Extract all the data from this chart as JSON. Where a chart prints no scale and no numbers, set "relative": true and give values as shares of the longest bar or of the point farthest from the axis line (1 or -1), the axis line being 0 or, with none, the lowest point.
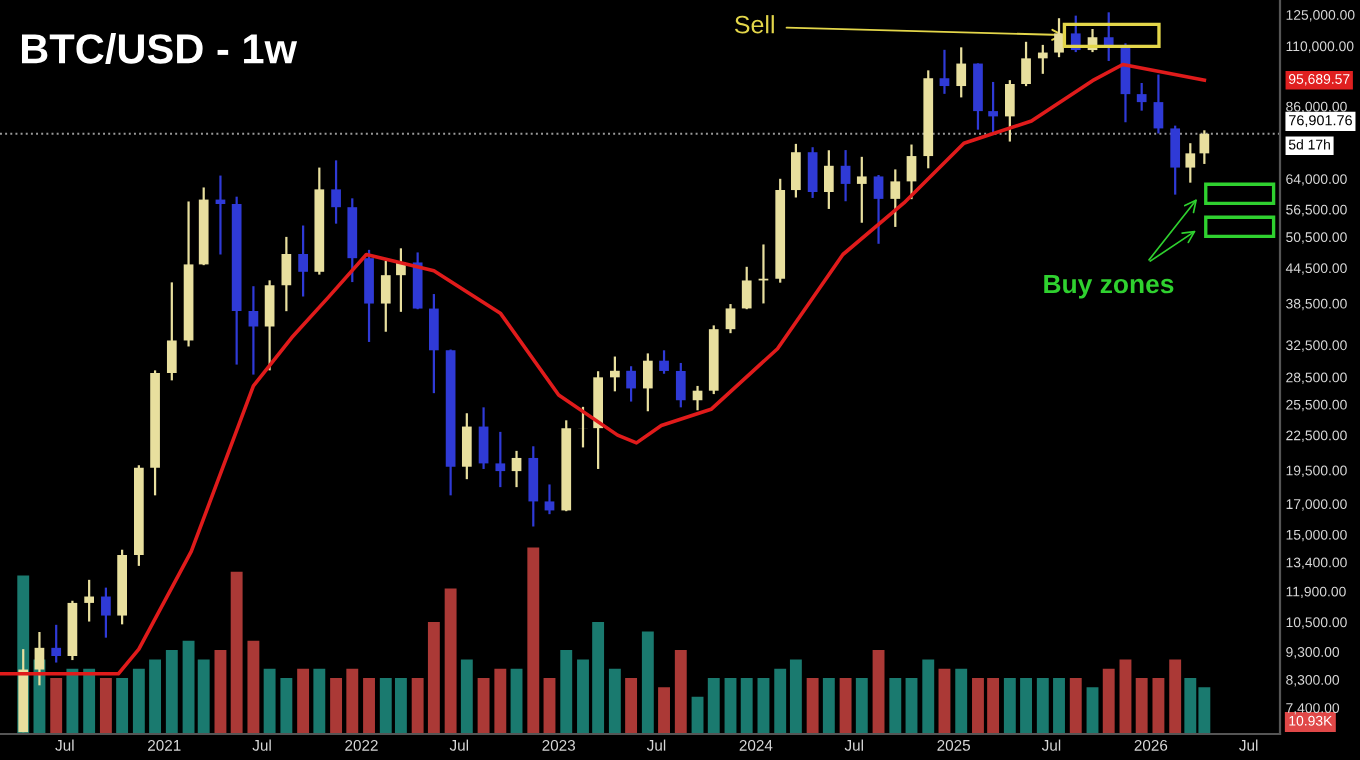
{
  "chart_data": [
    {
      "type": "candlestick",
      "title": "BTC/USD - 1w",
      "x": [
        "2020-04-15",
        "2020-05-15",
        "2020-06-15",
        "2020-07-15",
        "2020-08-15",
        "2020-09-15",
        "2020-10-15",
        "2020-11-15",
        "2020-12-15",
        "2021-01-15",
        "2021-02-15",
        "2021-03-15",
        "2021-04-15",
        "2021-05-15",
        "2021-06-15",
        "2021-07-15",
        "2021-08-15",
        "2021-09-15",
        "2021-10-15",
        "2021-11-15",
        "2021-12-15",
        "2022-01-15",
        "2022-02-15",
        "2022-03-15",
        "2022-04-15",
        "2022-05-15",
        "2022-06-15",
        "2022-07-15",
        "2022-08-15",
        "2022-09-15",
        "2022-10-15",
        "2022-11-15",
        "2022-12-15",
        "2023-01-15",
        "2023-02-15",
        "2023-03-15",
        "2023-04-15",
        "2023-05-15",
        "2023-06-15",
        "2023-07-15",
        "2023-08-15",
        "2023-09-15",
        "2023-10-15",
        "2023-11-15",
        "2023-12-15",
        "2024-01-15",
        "2024-02-15",
        "2024-03-15",
        "2024-04-15",
        "2024-05-15",
        "2024-06-15",
        "2024-07-15",
        "2024-08-15",
        "2024-09-15",
        "2024-10-15",
        "2024-11-15",
        "2024-12-15",
        "2025-01-15",
        "2025-02-15",
        "2025-03-15",
        "2025-04-15",
        "2025-05-15",
        "2025-06-15",
        "2025-07-15",
        "2025-08-15",
        "2025-09-15",
        "2025-10-15",
        "2025-11-15",
        "2025-12-15",
        "2026-01-15",
        "2026-02-15",
        "2026-03-15",
        "2026-04-10"
      ],
      "ohlc": [
        [
          6700,
          9400,
          6700,
          8650
        ],
        [
          8650,
          10080,
          8110,
          9450
        ],
        [
          9450,
          10380,
          8900,
          9140
        ],
        [
          9140,
          11450,
          8990,
          11350
        ],
        [
          11350,
          12470,
          10520,
          11650
        ],
        [
          11650,
          12080,
          9850,
          10780
        ],
        [
          10780,
          14100,
          10400,
          13800
        ],
        [
          13800,
          19900,
          13200,
          19700
        ],
        [
          19700,
          29300,
          17600,
          28990
        ],
        [
          28990,
          41950,
          28130,
          33100
        ],
        [
          33100,
          58350,
          32300,
          45140
        ],
        [
          45140,
          61780,
          45000,
          58800
        ],
        [
          58800,
          64850,
          47000,
          57750
        ],
        [
          57750,
          59500,
          30000,
          37330
        ],
        [
          37330,
          41300,
          28800,
          35040
        ],
        [
          35040,
          42300,
          29300,
          41460
        ],
        [
          41460,
          50500,
          37300,
          47100
        ],
        [
          47100,
          52900,
          39600,
          43800
        ],
        [
          43800,
          67000,
          43300,
          61300
        ],
        [
          61300,
          69000,
          53300,
          57000
        ],
        [
          57000,
          59100,
          42000,
          46300
        ],
        [
          46300,
          47900,
          32900,
          38480
        ],
        [
          38480,
          45800,
          34300,
          43200
        ],
        [
          43200,
          48200,
          37200,
          45500
        ],
        [
          45500,
          47400,
          37600,
          37700
        ],
        [
          37700,
          40000,
          26700,
          31800
        ],
        [
          31800,
          31900,
          17600,
          19780
        ],
        [
          19780,
          24600,
          18800,
          23300
        ],
        [
          23300,
          25200,
          19600,
          20050
        ],
        [
          20050,
          22800,
          18200,
          19430
        ],
        [
          19430,
          21100,
          18200,
          20500
        ],
        [
          20500,
          21500,
          15500,
          17170
        ],
        [
          17170,
          18400,
          16300,
          16550
        ],
        [
          16550,
          23900,
          16500,
          23140
        ],
        [
          23140,
          25250,
          21400,
          23150
        ],
        [
          23150,
          29200,
          19600,
          28480
        ],
        [
          28480,
          31000,
          26900,
          29250
        ],
        [
          29250,
          29800,
          25800,
          27220
        ],
        [
          27220,
          31400,
          24800,
          30480
        ],
        [
          30480,
          31800,
          28900,
          29230
        ],
        [
          29230,
          30200,
          25200,
          25940
        ],
        [
          25940,
          27500,
          24900,
          26970
        ],
        [
          26970,
          35200,
          26600,
          34660
        ],
        [
          34660,
          38400,
          34100,
          37720
        ],
        [
          37720,
          44700,
          37600,
          42280
        ],
        [
          42280,
          48970,
          38500,
          42580
        ],
        [
          42580,
          64000,
          41900,
          61130
        ],
        [
          61130,
          73800,
          59300,
          71330
        ],
        [
          71330,
          72800,
          59200,
          60640
        ],
        [
          60640,
          71900,
          56600,
          67490
        ],
        [
          67490,
          71950,
          58400,
          62680
        ],
        [
          62680,
          70000,
          53500,
          64620
        ],
        [
          64620,
          65000,
          49100,
          58970
        ],
        [
          58970,
          66500,
          52600,
          63330
        ],
        [
          63330,
          73600,
          58900,
          70220
        ],
        [
          70220,
          99600,
          66800,
          96450
        ],
        [
          96450,
          108300,
          90500,
          93430
        ],
        [
          93430,
          109400,
          89200,
          102400
        ],
        [
          102400,
          102500,
          78200,
          84350
        ],
        [
          84350,
          95000,
          76600,
          82550
        ],
        [
          82550,
          95700,
          74500,
          94200
        ],
        [
          94200,
          111900,
          93400,
          104600
        ],
        [
          104600,
          110500,
          98200,
          107100
        ],
        [
          107100,
          123200,
          105100,
          115800
        ],
        [
          115800,
          124500,
          107300,
          108200
        ],
        [
          108200,
          117900,
          107300,
          114000
        ],
        [
          114000,
          126200,
          103500,
          109500
        ],
        [
          109500,
          111200,
          80600,
          90400
        ],
        [
          90400,
          94600,
          84500,
          87500
        ],
        [
          87500,
          97900,
          77000,
          78600
        ],
        [
          78600,
          79500,
          60000,
          67000
        ],
        [
          67000,
          74000,
          63000,
          71000
        ],
        [
          71000,
          78000,
          68000,
          76901.76
        ]
      ],
      "colors": [
        "#e8df9e",
        "#e8df9e",
        "#2f3ad6",
        "#e8df9e",
        "#e8df9e",
        "#2f3ad6",
        "#e8df9e",
        "#e8df9e",
        "#e8df9e",
        "#e8df9e",
        "#e8df9e",
        "#e8df9e",
        "#2f3ad6",
        "#2f3ad6",
        "#2f3ad6",
        "#e8df9e",
        "#e8df9e",
        "#2f3ad6",
        "#e8df9e",
        "#2f3ad6",
        "#2f3ad6",
        "#2f3ad6",
        "#e8df9e",
        "#e8df9e",
        "#2f3ad6",
        "#2f3ad6",
        "#2f3ad6",
        "#e8df9e",
        "#2f3ad6",
        "#2f3ad6",
        "#e8df9e",
        "#2f3ad6",
        "#2f3ad6",
        "#e8df9e",
        "#e8df9e",
        "#e8df9e",
        "#e8df9e",
        "#2f3ad6",
        "#e8df9e",
        "#2f3ad6",
        "#2f3ad6",
        "#e8df9e",
        "#e8df9e",
        "#e8df9e",
        "#e8df9e",
        "#e8df9e",
        "#e8df9e",
        "#e8df9e",
        "#2f3ad6",
        "#e8df9e",
        "#2f3ad6",
        "#e8df9e",
        "#2f3ad6",
        "#e8df9e",
        "#e8df9e",
        "#e8df9e",
        "#2f3ad6",
        "#e8df9e",
        "#2f3ad6",
        "#2f3ad6",
        "#e8df9e",
        "#e8df9e",
        "#e8df9e",
        "#e8df9e",
        "#2f3ad6",
        "#e8df9e",
        "#2f3ad6",
        "#2f3ad6",
        "#2f3ad6",
        "#2f3ad6",
        "#2f3ad6",
        "#e8df9e",
        "#e8df9e"
      ],
      "series": [
        {
          "type": "line",
          "color": "#e01b1b",
          "x": [
            "2020-03-05",
            "2020-10-08",
            "2020-11-15",
            "2021-02-20",
            "2021-06-15",
            "2021-08-25",
            "2021-11-01",
            "2022-01-10",
            "2022-05-15",
            "2022-09-15",
            "2023-01-01",
            "2023-04-20",
            "2023-05-25",
            "2023-07-10",
            "2023-10-10",
            "2024-02-10",
            "2024-06-10",
            "2024-10-01",
            "2025-01-20",
            "2025-05-25",
            "2025-09-15",
            "2025-11-10",
            "2026-04-10"
          ],
          "values": [
            8500,
            8500,
            9400,
            14000,
            27500,
            33500,
            39500,
            47000,
            44000,
            37000,
            26500,
            22500,
            21800,
            23400,
            25000,
            32000,
            47000,
            58000,
            74000,
            81000,
            95500,
            102000,
            95689.57
          ]
        }
      ],
      "log": true,
      "xlim": [
        "2020-03-03",
        "2026-08-28"
      ],
      "ylim": [
        6650,
        132700
      ],
      "xticks": [
        {
          "value": "2020-07-01",
          "label": "Jul"
        },
        {
          "value": "2021-01-01",
          "label": "2021"
        },
        {
          "value": "2021-07-01",
          "label": "Jul"
        },
        {
          "value": "2022-01-01",
          "label": "2022"
        },
        {
          "value": "2022-07-01",
          "label": "Jul"
        },
        {
          "value": "2023-01-01",
          "label": "2023"
        },
        {
          "value": "2023-07-01",
          "label": "Jul"
        },
        {
          "value": "2024-01-01",
          "label": "2024"
        },
        {
          "value": "2024-07-01",
          "label": "Jul"
        },
        {
          "value": "2025-01-01",
          "label": "2025"
        },
        {
          "value": "2025-07-01",
          "label": "Jul"
        },
        {
          "value": "2026-01-01",
          "label": "2026"
        },
        {
          "value": "2026-07-01",
          "label": "Jul"
        }
      ],
      "yticks": [
        {
          "value": 125000,
          "label": "125,000.00"
        },
        {
          "value": 110000,
          "label": "110,000.00"
        },
        {
          "value": 86000,
          "label": "86,000.00"
        },
        {
          "value": 64000,
          "label": "64,000.00"
        },
        {
          "value": 56500,
          "label": "56,500.00"
        },
        {
          "value": 50500,
          "label": "50,500.00"
        },
        {
          "value": 44500,
          "label": "44,500.00"
        },
        {
          "value": 38500,
          "label": "38,500.00"
        },
        {
          "value": 32500,
          "label": "32,500.00"
        },
        {
          "value": 28500,
          "label": "28,500.00"
        },
        {
          "value": 25500,
          "label": "25,500.00"
        },
        {
          "value": 22500,
          "label": "22,500.00"
        },
        {
          "value": 19500,
          "label": "19,500.00"
        },
        {
          "value": 17000,
          "label": "17,000.00"
        },
        {
          "value": 15000,
          "label": "15,000.00"
        },
        {
          "value": 13400,
          "label": "13,400.00"
        },
        {
          "value": 11900,
          "label": "11,900.00"
        },
        {
          "value": 10500,
          "label": "10,500.00"
        },
        {
          "value": 9300,
          "label": "9,300.00"
        },
        {
          "value": 8300,
          "label": "8,300.00"
        },
        {
          "value": 7400,
          "label": "7,400.00"
        }
      ],
      "ref_lines": [
        {
          "axis": "y",
          "value": 76901.76,
          "label": "76,901.76",
          "color": "#9a9a9a",
          "line_style": "dotted"
        }
      ],
      "annotations": [
        {
          "text": "Sell",
          "x": "2025-07-25",
          "y": 115000
        },
        "Buy zones",
        "95,689.57",
        "5d 17h"
      ],
      "grid": false
    },
    {
      "type": "bar",
      "relative": true,
      "tick_labels": false,
      "xlim": [
        "2020-03-03",
        "2026-08-28"
      ],
      "annotations": [
        "10.93K"
      ],
      "x": [
        "2020-04-15",
        "2020-05-15",
        "2020-06-15",
        "2020-07-15",
        "2020-08-15",
        "2020-09-15",
        "2020-10-15",
        "2020-11-15",
        "2020-12-15",
        "2021-01-15",
        "2021-02-15",
        "2021-03-15",
        "2021-04-15",
        "2021-05-15",
        "2021-06-15",
        "2021-07-15",
        "2021-08-15",
        "2021-09-15",
        "2021-10-15",
        "2021-11-15",
        "2021-12-15",
        "2022-01-15",
        "2022-02-15",
        "2022-03-15",
        "2022-04-15",
        "2022-05-15",
        "2022-06-15",
        "2022-07-15",
        "2022-08-15",
        "2022-09-15",
        "2022-10-15",
        "2022-11-15",
        "2022-12-15",
        "2023-01-15",
        "2023-02-15",
        "2023-03-15",
        "2023-04-15",
        "2023-05-15",
        "2023-06-15",
        "2023-07-15",
        "2023-08-15",
        "2023-09-15",
        "2023-10-15",
        "2023-11-15",
        "2023-12-15",
        "2024-01-15",
        "2024-02-15",
        "2024-03-15",
        "2024-04-15",
        "2024-05-15",
        "2024-06-15",
        "2024-07-15",
        "2024-08-15",
        "2024-09-15",
        "2024-10-15",
        "2024-11-15",
        "2024-12-15",
        "2025-01-15",
        "2025-02-15",
        "2025-03-15",
        "2025-04-15",
        "2025-05-15",
        "2025-06-15",
        "2025-07-15",
        "2025-08-15",
        "2025-09-15",
        "2025-10-15",
        "2025-11-15",
        "2025-12-15",
        "2026-01-15",
        "2026-02-15",
        "2026-03-15",
        "2026-04-10"
      ],
      "values": [
        0.85,
        0.4,
        0.3,
        0.35,
        0.35,
        0.3,
        0.3,
        0.35,
        0.4,
        0.45,
        0.5,
        0.4,
        0.45,
        0.87,
        0.5,
        0.35,
        0.3,
        0.35,
        0.35,
        0.3,
        0.35,
        0.3,
        0.3,
        0.3,
        0.3,
        0.6,
        0.78,
        0.4,
        0.3,
        0.35,
        0.35,
        1,
        0.3,
        0.45,
        0.4,
        0.6,
        0.35,
        0.3,
        0.55,
        0.25,
        0.45,
        0.2,
        0.3,
        0.3,
        0.3,
        0.3,
        0.35,
        0.4,
        0.3,
        0.3,
        0.3,
        0.3,
        0.45,
        0.3,
        0.3,
        0.4,
        0.35,
        0.35,
        0.3,
        0.3,
        0.3,
        0.3,
        0.3,
        0.3,
        0.3,
        0.25,
        0.35,
        0.4,
        0.3,
        0.3,
        0.4,
        0.3,
        0.25
      ],
      "colors": [
        "#1f8f83",
        "#1f8f83",
        "#c9433f",
        "#1f8f83",
        "#1f8f83",
        "#c9433f",
        "#1f8f83",
        "#1f8f83",
        "#1f8f83",
        "#1f8f83",
        "#1f8f83",
        "#1f8f83",
        "#c9433f",
        "#c9433f",
        "#c9433f",
        "#1f8f83",
        "#1f8f83",
        "#c9433f",
        "#1f8f83",
        "#c9433f",
        "#c9433f",
        "#c9433f",
        "#1f8f83",
        "#1f8f83",
        "#c9433f",
        "#c9433f",
        "#c9433f",
        "#1f8f83",
        "#c9433f",
        "#c9433f",
        "#1f8f83",
        "#c9433f",
        "#c9433f",
        "#1f8f83",
        "#1f8f83",
        "#1f8f83",
        "#1f8f83",
        "#c9433f",
        "#1f8f83",
        "#c9433f",
        "#c9433f",
        "#1f8f83",
        "#1f8f83",
        "#1f8f83",
        "#1f8f83",
        "#1f8f83",
        "#1f8f83",
        "#1f8f83",
        "#c9433f",
        "#1f8f83",
        "#c9433f",
        "#1f8f83",
        "#c9433f",
        "#1f8f83",
        "#1f8f83",
        "#1f8f83",
        "#c9433f",
        "#1f8f83",
        "#c9433f",
        "#c9433f",
        "#1f8f83",
        "#1f8f83",
        "#1f8f83",
        "#1f8f83",
        "#c9433f",
        "#1f8f83",
        "#c9433f",
        "#c9433f",
        "#c9433f",
        "#c9433f",
        "#c9433f",
        "#1f8f83",
        "#1f8f83"
      ]
    }
  ]
}
